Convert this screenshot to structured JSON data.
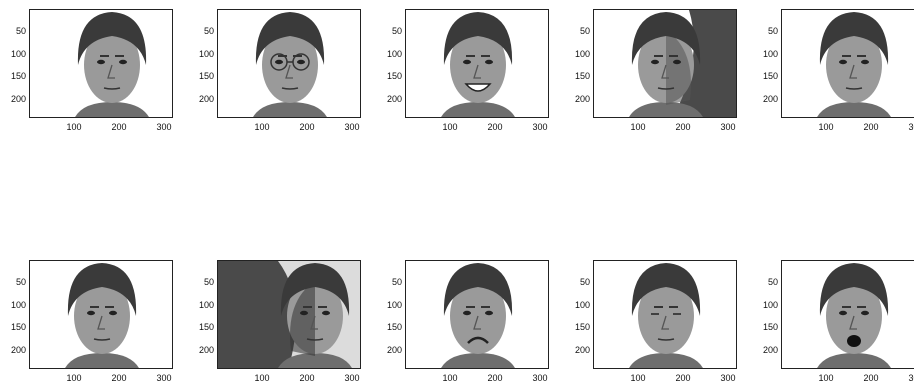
{
  "figure": {
    "panels": [
      {
        "expression": "normal",
        "lighting": "center",
        "glasses": false
      },
      {
        "expression": "glasses",
        "lighting": "center",
        "glasses": true
      },
      {
        "expression": "happy",
        "lighting": "center",
        "glasses": false
      },
      {
        "expression": "leftlight",
        "lighting": "left",
        "glasses": false
      },
      {
        "expression": "noglasses",
        "lighting": "center",
        "glasses": false
      },
      {
        "expression": "normal",
        "lighting": "center",
        "glasses": false
      },
      {
        "expression": "rightlight",
        "lighting": "right",
        "glasses": false
      },
      {
        "expression": "sad",
        "lighting": "center",
        "glasses": false
      },
      {
        "expression": "sleepy",
        "lighting": "center",
        "glasses": false
      },
      {
        "expression": "surprised",
        "lighting": "center",
        "glasses": false
      }
    ],
    "y_ticks": [
      "50",
      "100",
      "150",
      "200"
    ],
    "x_ticks": [
      "100",
      "200",
      "300"
    ],
    "colors": {
      "frame": "#222222",
      "background": "#ffffff",
      "hair": "#3a3a3a",
      "skin": "#9a9a9a"
    }
  }
}
